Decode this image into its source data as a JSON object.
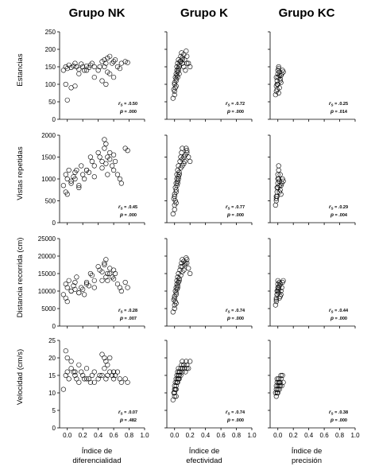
{
  "groups": [
    "Grupo NK",
    "Grupo K",
    "Grupo KC"
  ],
  "x_labels": [
    [
      "Índice de",
      "diferencialidad"
    ],
    [
      "Índice de",
      "efectividad"
    ],
    [
      "Índice de",
      "precisión"
    ]
  ],
  "x_ticks": [
    "0.0",
    "0.2",
    "0.4",
    "0.6",
    "0.8",
    "1.0"
  ],
  "x_range": [
    -0.1,
    1.0
  ],
  "rows": [
    {
      "ylabel": "Estancias",
      "ylim": [
        0,
        250
      ],
      "yticks": [
        0,
        50,
        100,
        150,
        200,
        250
      ],
      "stats": [
        {
          "rs": ".0.50",
          "p": ".000"
        },
        {
          "rs": ".0.72",
          "p": ".000"
        },
        {
          "rs": ".0.25",
          "p": ".014"
        }
      ]
    },
    {
      "ylabel": "Vistas repetidas",
      "ylim": [
        0,
        2000
      ],
      "yticks": [
        0,
        500,
        1000,
        1500,
        2000
      ],
      "stats": [
        {
          "rs": ".0.45",
          "p": ".000"
        },
        {
          "rs": ".0.77",
          "p": ".000"
        },
        {
          "rs": ".0.29",
          "p": ".004"
        }
      ]
    },
    {
      "ylabel": "Distancia recorrida (cm)",
      "ylim": [
        0,
        25000
      ],
      "yticks": [
        0,
        5000,
        10000,
        15000,
        20000,
        25000
      ],
      "stats": [
        {
          "rs": ".0.28",
          "p": ".007"
        },
        {
          "rs": ".0.74",
          "p": ".000"
        },
        {
          "rs": ".0.44",
          "p": ".000"
        }
      ]
    },
    {
      "ylabel": "Velocidad (cm/s)",
      "ylim": [
        0,
        25
      ],
      "yticks": [
        0,
        5,
        10,
        15,
        20,
        25
      ],
      "stats": [
        {
          "rs": ".0.07",
          "p": ".482"
        },
        {
          "rs": ".0.74",
          "p": ".000"
        },
        {
          "rs": ".0.38",
          "p": ".000"
        }
      ]
    }
  ],
  "chart_data": {
    "type": "scatter",
    "x_ticks": [
      "0.0",
      "0.2",
      "0.4",
      "0.6",
      "0.8",
      "1.0"
    ],
    "panels": [
      [
        {
          "x": [
            -0.05,
            -0.02,
            0.0,
            0.02,
            0.05,
            0.08,
            0.1,
            0.12,
            0.15,
            0.18,
            0.2,
            0.22,
            0.25,
            0.28,
            0.3,
            0.32,
            0.35,
            0.4,
            0.42,
            0.45,
            0.48,
            0.5,
            0.52,
            0.55,
            0.58,
            0.6,
            0.62,
            0.65,
            0.68,
            0.7,
            0.75,
            0.78,
            -0.02,
            0.05,
            0.15,
            0.25,
            0.35,
            0.45,
            0.5,
            0.55,
            0.6,
            0.0,
            0.1,
            0.48,
            0.52
          ],
          "y": [
            140,
            150,
            145,
            155,
            148,
            152,
            160,
            150,
            143,
            158,
            150,
            140,
            152,
            148,
            155,
            160,
            150,
            140,
            150,
            165,
            170,
            160,
            175,
            180,
            160,
            165,
            170,
            150,
            145,
            160,
            165,
            162,
            100,
            90,
            130,
            140,
            120,
            110,
            100,
            130,
            120,
            55,
            95,
            150,
            135
          ]
        },
        {
          "x": [
            -0.02,
            0.0,
            0.0,
            0.01,
            0.02,
            0.02,
            0.03,
            0.03,
            0.04,
            0.05,
            0.05,
            0.06,
            0.07,
            0.08,
            0.09,
            0.1,
            0.1,
            0.12,
            0.13,
            0.15,
            0.16,
            0.18,
            0.2,
            0.0,
            0.01,
            0.02,
            0.03,
            0.04,
            0.05,
            0.06,
            0.08,
            0.1,
            0.12,
            0.14,
            0.16,
            -0.01,
            0.0,
            0.02,
            0.04,
            0.06
          ],
          "y": [
            60,
            80,
            100,
            120,
            110,
            130,
            140,
            150,
            160,
            170,
            145,
            155,
            165,
            180,
            190,
            175,
            160,
            185,
            170,
            195,
            180,
            160,
            150,
            70,
            90,
            115,
            125,
            135,
            140,
            150,
            165,
            170,
            150,
            140,
            160,
            85,
            105,
            95,
            120,
            130
          ]
        },
        {
          "x": [
            -0.03,
            -0.02,
            -0.02,
            -0.01,
            -0.01,
            0.0,
            0.0,
            0.0,
            0.01,
            0.01,
            0.02,
            0.02,
            0.03,
            0.04,
            0.05,
            0.06,
            -0.02,
            0.0,
            0.02,
            0.03,
            -0.01,
            0.01,
            0.04,
            0.07
          ],
          "y": [
            70,
            80,
            95,
            100,
            110,
            120,
            130,
            140,
            150,
            145,
            125,
            135,
            115,
            105,
            130,
            140,
            120,
            100,
            90,
            110,
            85,
            75,
            125,
            135
          ]
        }
      ],
      [
        {
          "x": [
            -0.05,
            -0.02,
            0.0,
            0.02,
            0.05,
            0.08,
            0.1,
            0.12,
            0.15,
            0.18,
            0.2,
            0.22,
            0.25,
            0.28,
            0.3,
            0.32,
            0.35,
            0.4,
            0.42,
            0.45,
            0.48,
            0.5,
            0.52,
            0.55,
            0.58,
            0.6,
            0.62,
            0.65,
            0.68,
            0.7,
            0.75,
            0.78,
            -0.02,
            0.05,
            0.15,
            0.25,
            0.35,
            0.45,
            0.5,
            0.55,
            0.6,
            0.0,
            0.1,
            0.48,
            0.52
          ],
          "y": [
            850,
            1100,
            1000,
            1200,
            900,
            1050,
            1150,
            1200,
            800,
            1300,
            1100,
            1000,
            1200,
            1150,
            1500,
            1400,
            1300,
            1600,
            1500,
            1400,
            1700,
            1800,
            1500,
            1600,
            1300,
            1200,
            1400,
            1100,
            1000,
            900,
            1700,
            1650,
            700,
            950,
            850,
            1200,
            1050,
            1250,
            1350,
            1450,
            1550,
            650,
            1000,
            1900,
            1100
          ]
        },
        {
          "x": [
            -0.02,
            0.0,
            0.0,
            0.01,
            0.02,
            0.02,
            0.03,
            0.03,
            0.04,
            0.05,
            0.05,
            0.06,
            0.07,
            0.08,
            0.09,
            0.1,
            0.1,
            0.12,
            0.13,
            0.15,
            0.16,
            0.18,
            0.2,
            0.0,
            0.01,
            0.02,
            0.03,
            0.04,
            0.05,
            0.06,
            0.08,
            0.1,
            0.12,
            0.14,
            0.16,
            -0.01,
            0.0,
            0.02,
            0.04,
            0.06
          ],
          "y": [
            200,
            400,
            600,
            800,
            700,
            900,
            1000,
            1100,
            1200,
            1300,
            1000,
            1100,
            1400,
            1500,
            1600,
            1700,
            1300,
            1500,
            1400,
            1700,
            1600,
            1500,
            1400,
            300,
            500,
            750,
            850,
            950,
            1050,
            1150,
            1250,
            1450,
            1350,
            1550,
            1650,
            550,
            650,
            450,
            900,
            1100
          ]
        },
        {
          "x": [
            -0.03,
            -0.02,
            -0.02,
            -0.01,
            -0.01,
            0.0,
            0.0,
            0.0,
            0.01,
            0.01,
            0.02,
            0.02,
            0.03,
            0.04,
            0.05,
            0.06,
            -0.02,
            0.0,
            0.02,
            0.03,
            -0.01,
            0.01,
            0.04,
            0.07
          ],
          "y": [
            400,
            500,
            600,
            700,
            800,
            900,
            1000,
            1100,
            1200,
            1300,
            950,
            850,
            750,
            650,
            900,
            1000,
            550,
            800,
            700,
            1100,
            600,
            1000,
            850,
            950
          ]
        }
      ],
      [
        {
          "x": [
            -0.05,
            -0.02,
            0.0,
            0.02,
            0.05,
            0.08,
            0.1,
            0.12,
            0.15,
            0.18,
            0.2,
            0.22,
            0.25,
            0.28,
            0.3,
            0.32,
            0.35,
            0.4,
            0.42,
            0.45,
            0.48,
            0.5,
            0.52,
            0.55,
            0.58,
            0.6,
            0.62,
            0.65,
            0.68,
            0.7,
            0.75,
            0.78,
            -0.02,
            0.05,
            0.15,
            0.25,
            0.35,
            0.45,
            0.5,
            0.55,
            0.6,
            0.0,
            0.1,
            0.48,
            0.52
          ],
          "y": [
            9000,
            12000,
            11000,
            13000,
            10000,
            11500,
            12500,
            14000,
            9500,
            11000,
            10500,
            9000,
            12000,
            11500,
            15000,
            14500,
            13000,
            17000,
            16000,
            15500,
            18000,
            19000,
            15000,
            16500,
            14000,
            13500,
            15000,
            12000,
            11000,
            10000,
            12500,
            11000,
            8000,
            10000,
            9500,
            12500,
            11000,
            13000,
            14000,
            15000,
            16000,
            7000,
            10500,
            17500,
            13000
          ]
        },
        {
          "x": [
            -0.02,
            0.0,
            0.0,
            0.01,
            0.02,
            0.02,
            0.03,
            0.03,
            0.04,
            0.05,
            0.05,
            0.06,
            0.07,
            0.08,
            0.09,
            0.1,
            0.1,
            0.12,
            0.13,
            0.15,
            0.16,
            0.18,
            0.2,
            0.0,
            0.01,
            0.02,
            0.03,
            0.04,
            0.05,
            0.06,
            0.08,
            0.1,
            0.12,
            0.14,
            0.16,
            -0.01,
            0.0,
            0.02,
            0.04,
            0.06
          ],
          "y": [
            4000,
            6000,
            8000,
            10000,
            9000,
            11000,
            12000,
            13000,
            14000,
            15000,
            12500,
            13500,
            16000,
            17000,
            18000,
            19000,
            15500,
            18500,
            17500,
            19500,
            18000,
            16500,
            15000,
            5000,
            7000,
            9500,
            10500,
            11500,
            12500,
            13500,
            14500,
            17000,
            16000,
            18000,
            19000,
            7500,
            8500,
            6500,
            11000,
            13000
          ]
        },
        {
          "x": [
            -0.03,
            -0.02,
            -0.02,
            -0.01,
            -0.01,
            0.0,
            0.0,
            0.0,
            0.01,
            0.01,
            0.02,
            0.02,
            0.03,
            0.04,
            0.05,
            0.06,
            -0.02,
            0.0,
            0.02,
            0.03,
            -0.01,
            0.01,
            0.04,
            0.07
          ],
          "y": [
            6000,
            7000,
            8000,
            9000,
            10000,
            11000,
            12000,
            13000,
            10500,
            9500,
            11500,
            12500,
            8500,
            9000,
            11000,
            12500,
            7500,
            10000,
            8000,
            12000,
            9000,
            11000,
            10000,
            13000
          ]
        }
      ],
      [
        {
          "x": [
            -0.05,
            -0.02,
            0.0,
            0.02,
            0.05,
            0.08,
            0.1,
            0.12,
            0.15,
            0.18,
            0.2,
            0.22,
            0.25,
            0.28,
            0.3,
            0.32,
            0.35,
            0.4,
            0.42,
            0.45,
            0.48,
            0.5,
            0.52,
            0.55,
            0.58,
            0.6,
            0.62,
            0.65,
            0.68,
            0.7,
            0.75,
            0.78,
            -0.02,
            0.05,
            0.15,
            0.25,
            0.35,
            0.45,
            0.5,
            0.55,
            0.6,
            0.0,
            0.1,
            0.48,
            0.52
          ],
          "y": [
            11,
            15,
            16,
            14,
            17,
            16,
            15,
            14,
            18,
            16,
            15,
            14,
            17,
            14,
            13,
            15,
            16,
            14,
            15,
            21,
            20,
            19,
            18,
            16,
            15,
            14,
            15,
            16,
            14,
            13,
            14,
            13,
            22,
            19,
            13,
            14,
            13,
            15,
            14,
            20,
            16,
            20,
            16,
            17,
            15
          ]
        },
        {
          "x": [
            -0.02,
            0.0,
            0.0,
            0.01,
            0.02,
            0.02,
            0.03,
            0.03,
            0.04,
            0.05,
            0.05,
            0.06,
            0.07,
            0.08,
            0.09,
            0.1,
            0.1,
            0.12,
            0.13,
            0.15,
            0.16,
            0.18,
            0.2,
            0.0,
            0.01,
            0.02,
            0.03,
            0.04,
            0.05,
            0.06,
            0.08,
            0.1,
            0.12,
            0.14,
            0.16,
            -0.01,
            0.0,
            0.02,
            0.04,
            0.06
          ],
          "y": [
            8,
            10,
            12,
            13,
            11,
            14,
            15,
            13,
            16,
            17,
            14,
            15,
            16,
            17,
            18,
            19,
            16,
            18,
            17,
            19,
            18,
            17,
            19,
            9,
            11,
            12,
            13,
            14,
            15,
            16,
            15,
            17,
            18,
            16,
            17,
            10,
            11,
            9,
            13,
            14
          ]
        },
        {
          "x": [
            -0.03,
            -0.02,
            -0.02,
            -0.01,
            -0.01,
            0.0,
            0.0,
            0.0,
            0.01,
            0.01,
            0.02,
            0.02,
            0.03,
            0.04,
            0.05,
            0.06,
            -0.02,
            0.0,
            0.02,
            0.03,
            -0.01,
            0.01,
            0.04,
            0.07
          ],
          "y": [
            10,
            11,
            12,
            13,
            14,
            12,
            11,
            10,
            13,
            14,
            12,
            11,
            13,
            14,
            12,
            15,
            9,
            11,
            13,
            12,
            10,
            14,
            15,
            13
          ]
        }
      ]
    ]
  }
}
